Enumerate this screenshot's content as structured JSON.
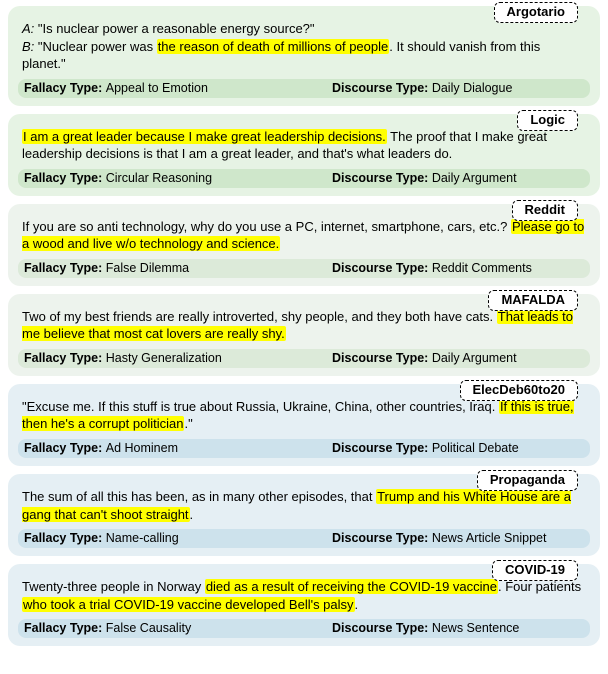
{
  "labels": {
    "fallacy": "Fallacy Type",
    "discourse": "Discourse Type"
  },
  "cards": [
    {
      "badge": "Argotario",
      "card_bg": "#e6f3e4",
      "meta_bg": "#cfe7cb",
      "segments": [
        {
          "t": "A:",
          "it": true
        },
        {
          "t": " \"Is nuclear power a reasonable energy source?\""
        },
        {
          "br": true
        },
        {
          "t": "B:",
          "it": true
        },
        {
          "t": " \"Nuclear power was "
        },
        {
          "t": "the reason of death of millions of people",
          "hl": true
        },
        {
          "t": ". It should vanish from this planet.\""
        }
      ],
      "fallacy": "Appeal to Emotion",
      "discourse": "Daily Dialogue"
    },
    {
      "badge": "Logic",
      "card_bg": "#e6f3e4",
      "meta_bg": "#cfe7cb",
      "segments": [
        {
          "t": "I am a great leader because I make great leadership decisions.",
          "hl": true
        },
        {
          "t": " The proof that I make great leadership decisions is that I am a great leader, and that's what leaders do."
        }
      ],
      "fallacy": "Circular Reasoning",
      "discourse": "Daily Argument"
    },
    {
      "badge": "Reddit",
      "card_bg": "#edf3ed",
      "meta_bg": "#dcead9",
      "segments": [
        {
          "t": "If you are so anti technology, why do you use a PC, internet, smartphone, cars, etc.? "
        },
        {
          "t": "Please go to a wood and live w/o technology and science.",
          "hl": true
        }
      ],
      "fallacy": "False Dilemma",
      "discourse": "Reddit Comments"
    },
    {
      "badge": "MAFALDA",
      "card_bg": "#edf3ed",
      "meta_bg": "#dcead9",
      "segments": [
        {
          "t": "Two of my best friends are really introverted, shy people, and they both have cats. "
        },
        {
          "t": "That leads to me believe that most cat lovers are really shy.",
          "hl": true
        }
      ],
      "fallacy": "Hasty Generalization",
      "discourse": "Daily Argument"
    },
    {
      "badge": "ElecDeb60to20",
      "card_bg": "#e5eff4",
      "meta_bg": "#cde2ec",
      "segments": [
        {
          "t": "\"Excuse me. If this stuff is true about Russia, Ukraine, China, other countries, Iraq. "
        },
        {
          "t": "If this is true, then he's a corrupt politician",
          "hl": true
        },
        {
          "t": ".\""
        }
      ],
      "fallacy": "Ad Hominem",
      "discourse": "Political Debate"
    },
    {
      "badge": "Propaganda",
      "card_bg": "#e5eff4",
      "meta_bg": "#cde2ec",
      "segments": [
        {
          "t": "The sum of all this has been, as in many other episodes, that "
        },
        {
          "t": "Trump and his White House are a gang that can't shoot straight",
          "hl": true
        },
        {
          "t": "."
        }
      ],
      "fallacy": "Name-calling",
      "discourse": "News Article Snippet"
    },
    {
      "badge": "COVID-19",
      "card_bg": "#e5eff4",
      "meta_bg": "#cde2ec",
      "segments": [
        {
          "t": "Twenty-three people in Norway "
        },
        {
          "t": "died as a result of receiving the COVID-19 vaccine",
          "hl": true
        },
        {
          "t": ". Four patients "
        },
        {
          "t": "who took a trial COVID-19 vaccine developed Bell's palsy",
          "hl": true
        },
        {
          "t": "."
        }
      ],
      "fallacy": "False Causality",
      "discourse": "News Sentence"
    }
  ]
}
